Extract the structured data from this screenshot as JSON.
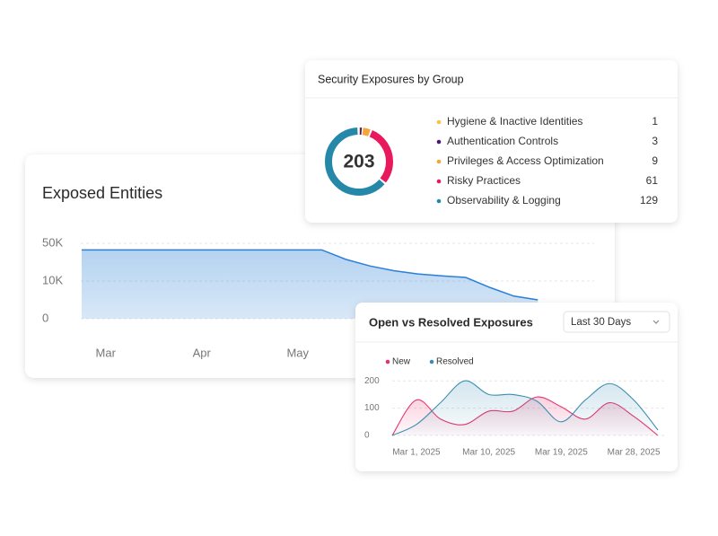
{
  "chart_data": [
    {
      "type": "area",
      "title": "Exposed Entities",
      "categories": [
        null,
        "Mar",
        null,
        null,
        null,
        "Apr",
        null,
        null,
        null,
        "May",
        null,
        null,
        null,
        null,
        null,
        null,
        null,
        null,
        null,
        null
      ],
      "values": [
        43000,
        43000,
        43000,
        43000,
        43000,
        43000,
        43000,
        43000,
        43000,
        43000,
        43000,
        33000,
        26000,
        21000,
        17500,
        15500,
        13800,
        8300,
        6000,
        5000
      ],
      "color": "#2b7fd6",
      "ylim": [
        0,
        50000
      ],
      "yticks": [
        0,
        {
          "value": 10000,
          "label": "10K"
        },
        {
          "value": 50000,
          "label": "50K"
        }
      ],
      "grid": true
    },
    {
      "type": "donut",
      "title": "Security Exposures by Group",
      "total": 203,
      "categories": [
        "Hygiene & Inactive Identities",
        "Authentication Controls",
        "Privileges & Access Optimization",
        "Risky Practices",
        "Observability & Logging"
      ],
      "values": [
        1,
        3,
        9,
        61,
        129
      ],
      "colors": [
        "#f5c542",
        "#4b1a78",
        "#f4a63a",
        "#e8195c",
        "#2688a9"
      ]
    },
    {
      "type": "line",
      "title": "Open vs Resolved Exposures",
      "period": "Last 30 Days",
      "x": [
        "2025-02-26",
        "2025-03-01",
        "2025-03-04",
        "2025-03-07",
        "2025-03-10",
        "2025-03-13",
        "2025-03-16",
        "2025-03-19",
        "2025-03-22",
        "2025-03-25",
        "2025-03-28",
        "2025-03-31"
      ],
      "series": [
        {
          "name": "New",
          "color": "#e8306a",
          "values": [
            0,
            130,
            60,
            40,
            89,
            89,
            141,
            105,
            60,
            120,
            70,
            0
          ]
        },
        {
          "name": "Resolved",
          "color": "#3a8fb0",
          "values": [
            0,
            40,
            120,
            200,
            150,
            150,
            125,
            50,
            130,
            190,
            130,
            20
          ]
        }
      ],
      "xlim": [
        "2025-02-26",
        "2025-03-31"
      ],
      "xticks": [
        {
          "value": "2025-03-01",
          "label": "Mar 1, 2025"
        },
        {
          "value": "2025-03-10",
          "label": "Mar 10, 2025"
        },
        {
          "value": "2025-03-19",
          "label": "Mar 19, 2025"
        },
        {
          "value": "2025-03-28",
          "label": "Mar 28, 2025"
        }
      ],
      "ylim": [
        0,
        250
      ],
      "yticks": [
        0,
        100,
        200
      ],
      "grid": true,
      "legend": "top-left"
    }
  ]
}
